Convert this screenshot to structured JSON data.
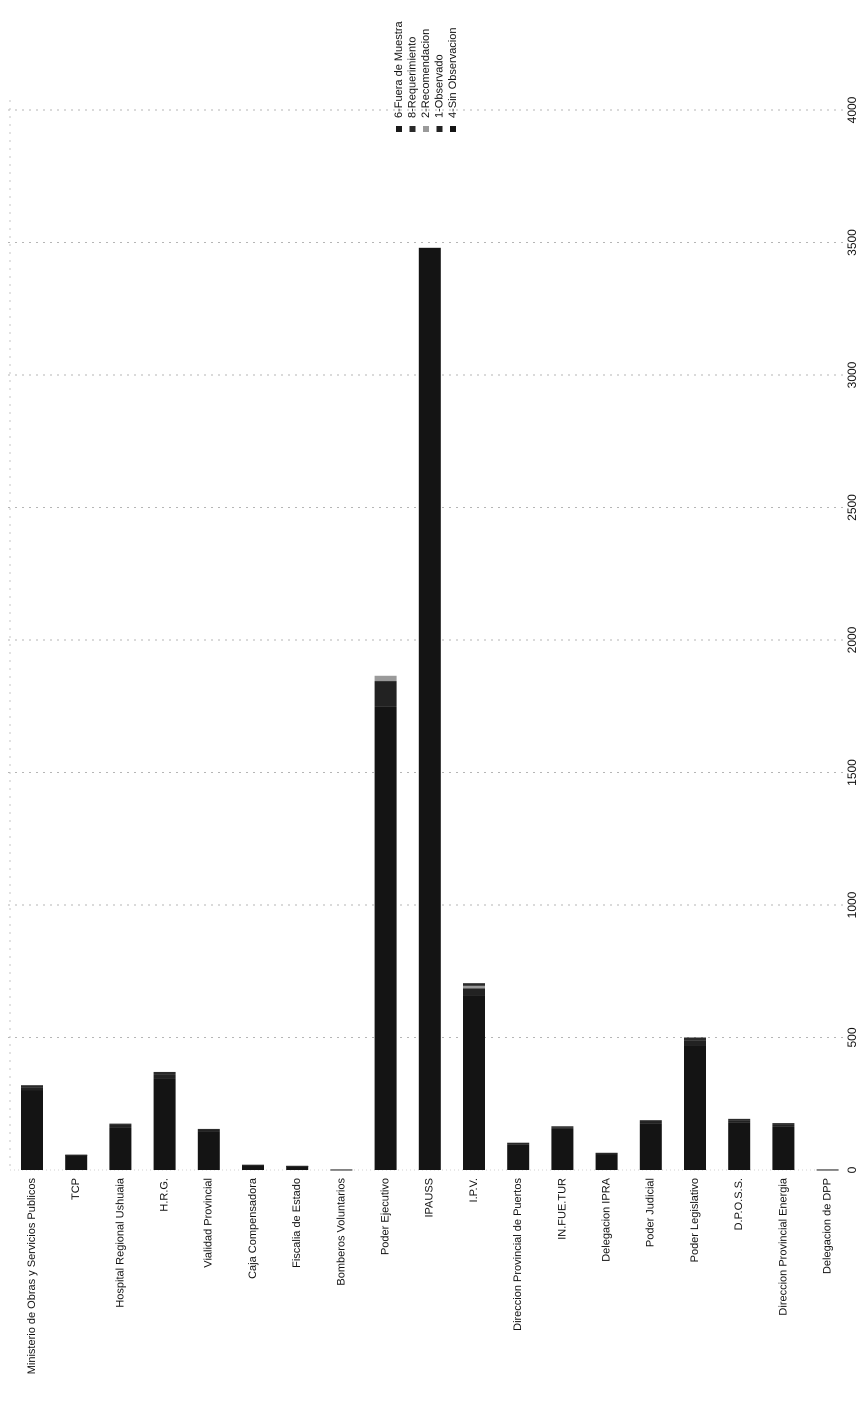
{
  "chart_data": {
    "type": "bar",
    "orientation": "horizontal-rotated",
    "stacked": true,
    "title": "",
    "xlabel": "",
    "ylabel": "",
    "categories": [
      "Ministerio de Obras y Servicios Publicos",
      "TCP",
      "Hospital Regional Ushuaia",
      "H.R.G.",
      "Vialidad Provincial",
      "Caja Compensadora",
      "Fiscalia de Estado",
      "Bomberos Voluntarios",
      "Poder Ejecutivo",
      "IPAUSS",
      "I.P.V.",
      "Direccion Provincial de Puertos",
      "IN.FUE.TUR",
      "Delegacion IPRA",
      "Poder Judicial",
      "Poder Legislativo",
      "D.P.O.S.S.",
      "Direccion Provincial Energia",
      "Delegacion de DPP"
    ],
    "series": [
      {
        "name": "4-Sin Observacion",
        "color": "#141414",
        "values": [
          300,
          55,
          160,
          345,
          145,
          18,
          14,
          2,
          1750,
          3480,
          660,
          95,
          155,
          60,
          175,
          470,
          180,
          165,
          2
        ]
      },
      {
        "name": "1-Observado",
        "color": "#222222",
        "values": [
          12,
          2,
          10,
          15,
          6,
          1,
          1,
          0,
          95,
          0,
          25,
          5,
          6,
          3,
          8,
          18,
          8,
          7,
          0
        ]
      },
      {
        "name": "2-Recomendacion",
        "color": "#9a9a9a",
        "values": [
          0,
          0,
          0,
          0,
          0,
          0,
          0,
          0,
          20,
          0,
          10,
          0,
          0,
          0,
          0,
          0,
          0,
          0,
          0
        ]
      },
      {
        "name": "8-Requerimiento",
        "color": "#2a2a2a",
        "values": [
          8,
          1,
          5,
          10,
          4,
          1,
          1,
          0,
          0,
          0,
          10,
          3,
          4,
          2,
          5,
          12,
          5,
          5,
          0
        ]
      },
      {
        "name": "6-Fuera de Muestra",
        "color": "#1a1a1a",
        "values": [
          0,
          0,
          0,
          0,
          0,
          0,
          0,
          0,
          0,
          0,
          0,
          0,
          0,
          0,
          0,
          0,
          0,
          0,
          0
        ]
      }
    ],
    "ticks": [
      0,
      500,
      1000,
      1500,
      2000,
      2500,
      3000,
      3500,
      4000
    ],
    "ylim": [
      0,
      4000
    ],
    "grid": true,
    "legend_position": "top-right"
  }
}
